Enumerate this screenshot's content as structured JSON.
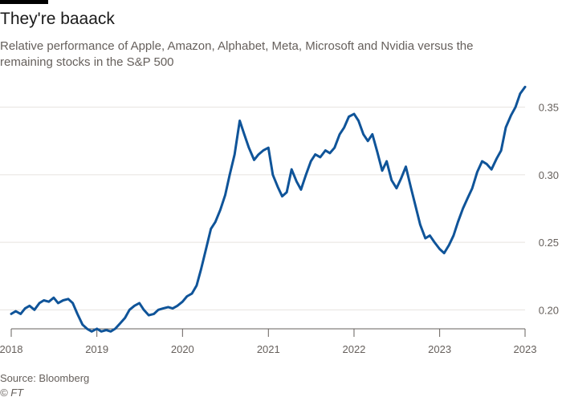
{
  "header": {
    "title": "They're baaack",
    "subtitle": "Relative performance of Apple, Amazon, Alphabet, Meta, Microsoft and Nvidia versus the remaining stocks in the S&P 500"
  },
  "footer": {
    "source": "Source: Bloomberg",
    "credit": "© FT"
  },
  "colors": {
    "line": "#0f5499",
    "grid": "#e6e3df",
    "axis": "#66605c",
    "accent_bar": "#000000"
  },
  "chart_data": {
    "type": "line",
    "title": "They're baaack",
    "subtitle": "Relative performance of Apple, Amazon, Alphabet, Meta, Microsoft and Nvidia versus the remaining stocks in the S&P 500",
    "xlabel": "",
    "ylabel": "",
    "ylim": [
      0.18,
      0.37
    ],
    "yticks": [
      0.2,
      0.25,
      0.3,
      0.35
    ],
    "ytick_labels": [
      "0.20",
      "0.25",
      "0.30",
      "0.35"
    ],
    "y_axis_side": "right",
    "grid": "horizontal",
    "xlim": [
      "2018-01-01",
      "2023-12-31"
    ],
    "xticks": [
      {
        "date": "2018-01-01",
        "label": "2018"
      },
      {
        "date": "2019-01-01",
        "label": "2019"
      },
      {
        "date": "2020-01-01",
        "label": "2020"
      },
      {
        "date": "2021-01-01",
        "label": "2021"
      },
      {
        "date": "2022-01-01",
        "label": "2022"
      },
      {
        "date": "2023-01-01",
        "label": "2023"
      },
      {
        "date": "2023-12-31",
        "label": "2023"
      }
    ],
    "series": [
      {
        "x": [
          "2018-01-01",
          "2018-01-20",
          "2018-02-10",
          "2018-03-01",
          "2018-03-20",
          "2018-04-10",
          "2018-05-01",
          "2018-05-20",
          "2018-06-10",
          "2018-07-01",
          "2018-07-20",
          "2018-08-10",
          "2018-09-01",
          "2018-09-20",
          "2018-10-10",
          "2018-11-01",
          "2018-11-20",
          "2018-12-10",
          "2019-01-01",
          "2019-01-20",
          "2019-02-10",
          "2019-03-01",
          "2019-03-20",
          "2019-04-10",
          "2019-05-01",
          "2019-05-20",
          "2019-06-10",
          "2019-07-01",
          "2019-07-20",
          "2019-08-10",
          "2019-09-01",
          "2019-09-20",
          "2019-10-10",
          "2019-11-01",
          "2019-11-20",
          "2019-12-10",
          "2020-01-01",
          "2020-01-20",
          "2020-02-10",
          "2020-03-01",
          "2020-03-20",
          "2020-04-10",
          "2020-05-01",
          "2020-05-20",
          "2020-06-10",
          "2020-07-01",
          "2020-07-20",
          "2020-08-10",
          "2020-09-01",
          "2020-09-20",
          "2020-10-10",
          "2020-11-01",
          "2020-11-20",
          "2020-12-10",
          "2021-01-01",
          "2021-01-20",
          "2021-02-10",
          "2021-03-01",
          "2021-03-20",
          "2021-04-10",
          "2021-05-01",
          "2021-05-20",
          "2021-06-10",
          "2021-07-01",
          "2021-07-20",
          "2021-08-10",
          "2021-09-01",
          "2021-09-20",
          "2021-10-10",
          "2021-11-01",
          "2021-11-20",
          "2021-12-10",
          "2022-01-01",
          "2022-01-20",
          "2022-02-10",
          "2022-03-01",
          "2022-03-20",
          "2022-04-10",
          "2022-05-01",
          "2022-05-20",
          "2022-06-10",
          "2022-07-01",
          "2022-07-20",
          "2022-08-10",
          "2022-09-01",
          "2022-09-20",
          "2022-10-10",
          "2022-11-01",
          "2022-11-20",
          "2022-12-10",
          "2023-01-01",
          "2023-01-20",
          "2023-02-10",
          "2023-03-01",
          "2023-03-20",
          "2023-04-10",
          "2023-05-01",
          "2023-05-20",
          "2023-06-10",
          "2023-07-01",
          "2023-07-20",
          "2023-08-10",
          "2023-09-01",
          "2023-09-20",
          "2023-10-10",
          "2023-11-01",
          "2023-11-20",
          "2023-12-10",
          "2023-12-31"
        ],
        "values": [
          0.197,
          0.199,
          0.197,
          0.201,
          0.203,
          0.2,
          0.205,
          0.207,
          0.206,
          0.209,
          0.205,
          0.207,
          0.208,
          0.205,
          0.197,
          0.189,
          0.186,
          0.184,
          0.186,
          0.184,
          0.185,
          0.184,
          0.186,
          0.19,
          0.194,
          0.2,
          0.203,
          0.205,
          0.2,
          0.196,
          0.197,
          0.2,
          0.201,
          0.202,
          0.201,
          0.203,
          0.206,
          0.21,
          0.212,
          0.218,
          0.23,
          0.245,
          0.26,
          0.265,
          0.274,
          0.285,
          0.3,
          0.315,
          0.34,
          0.33,
          0.32,
          0.311,
          0.315,
          0.318,
          0.32,
          0.3,
          0.291,
          0.284,
          0.287,
          0.304,
          0.295,
          0.289,
          0.3,
          0.31,
          0.315,
          0.313,
          0.318,
          0.316,
          0.32,
          0.33,
          0.335,
          0.343,
          0.345,
          0.34,
          0.33,
          0.325,
          0.33,
          0.317,
          0.303,
          0.31,
          0.296,
          0.29,
          0.297,
          0.306,
          0.29,
          0.277,
          0.263,
          0.253,
          0.255,
          0.25,
          0.245,
          0.242,
          0.248,
          0.255,
          0.265,
          0.275,
          0.283,
          0.29,
          0.302,
          0.31,
          0.308,
          0.304,
          0.312,
          0.318,
          0.335,
          0.344,
          0.35,
          0.36,
          0.365
        ]
      }
    ]
  }
}
